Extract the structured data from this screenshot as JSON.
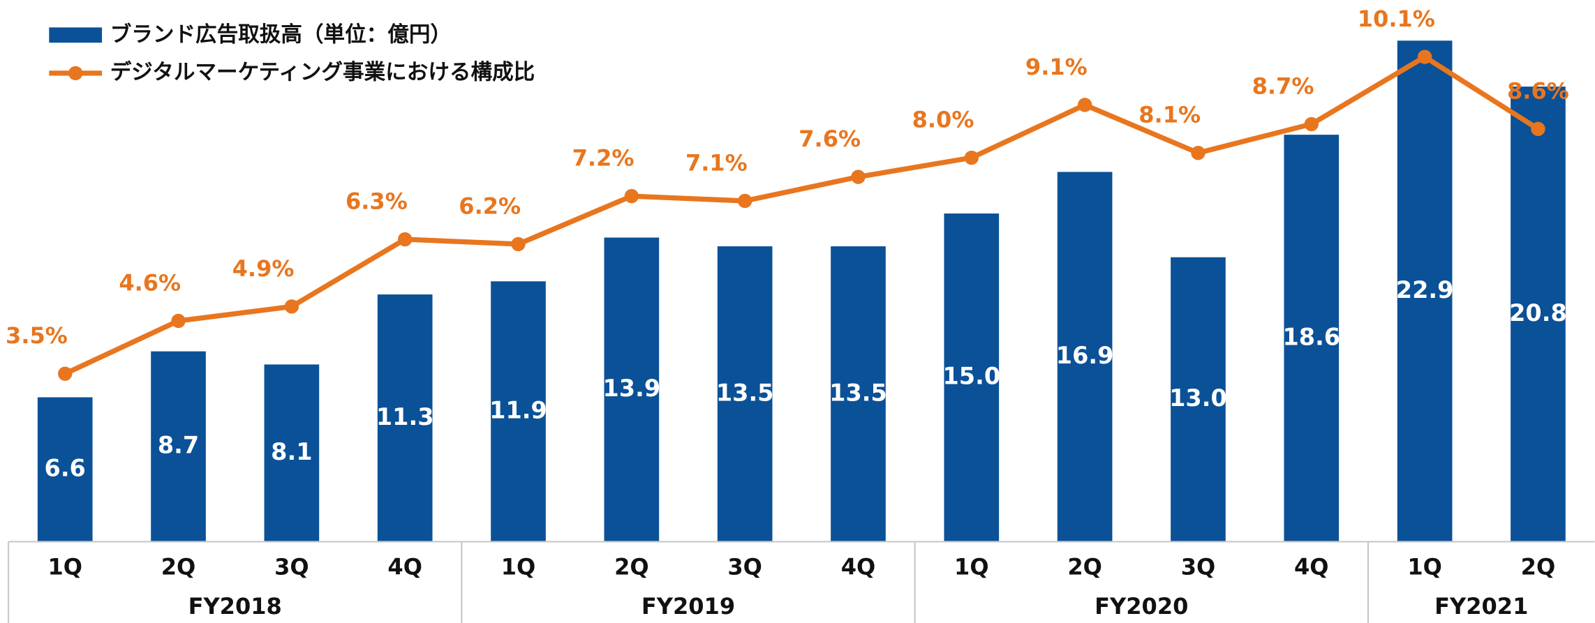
{
  "chart_data": {
    "type": "bar-line",
    "groups": [
      {
        "name": "FY2018",
        "categories": [
          "1Q",
          "2Q",
          "3Q",
          "4Q"
        ]
      },
      {
        "name": "FY2019",
        "categories": [
          "1Q",
          "2Q",
          "3Q",
          "4Q"
        ]
      },
      {
        "name": "FY2020",
        "categories": [
          "1Q",
          "2Q",
          "3Q",
          "4Q"
        ]
      },
      {
        "name": "FY2021",
        "categories": [
          "1Q",
          "2Q"
        ]
      }
    ],
    "series": [
      {
        "name": "ブランド広告取扱高（単位：億円）",
        "type": "bar",
        "color": "#0b5197",
        "values": [
          6.6,
          8.7,
          8.1,
          11.3,
          11.9,
          13.9,
          13.5,
          13.5,
          15.0,
          16.9,
          13.0,
          18.6,
          22.9,
          20.8
        ],
        "value_labels": [
          "6.6",
          "8.7",
          "8.1",
          "11.3",
          "11.9",
          "13.9",
          "13.5",
          "13.5",
          "15.0",
          "16.9",
          "13.0",
          "18.6",
          "22.9",
          "20.8"
        ]
      },
      {
        "name": "デジタルマーケティング事業における構成比",
        "type": "line",
        "color": "#e8761f",
        "values": [
          3.5,
          4.6,
          4.9,
          6.3,
          6.2,
          7.2,
          7.1,
          7.6,
          8.0,
          9.1,
          8.1,
          8.7,
          10.1,
          8.6
        ],
        "value_labels": [
          "3.5%",
          "4.6%",
          "4.9%",
          "6.3%",
          "6.2%",
          "7.2%",
          "7.1%",
          "7.6%",
          "8.0%",
          "9.1%",
          "8.1%",
          "8.7%",
          "10.1%",
          "8.6%"
        ]
      }
    ]
  }
}
